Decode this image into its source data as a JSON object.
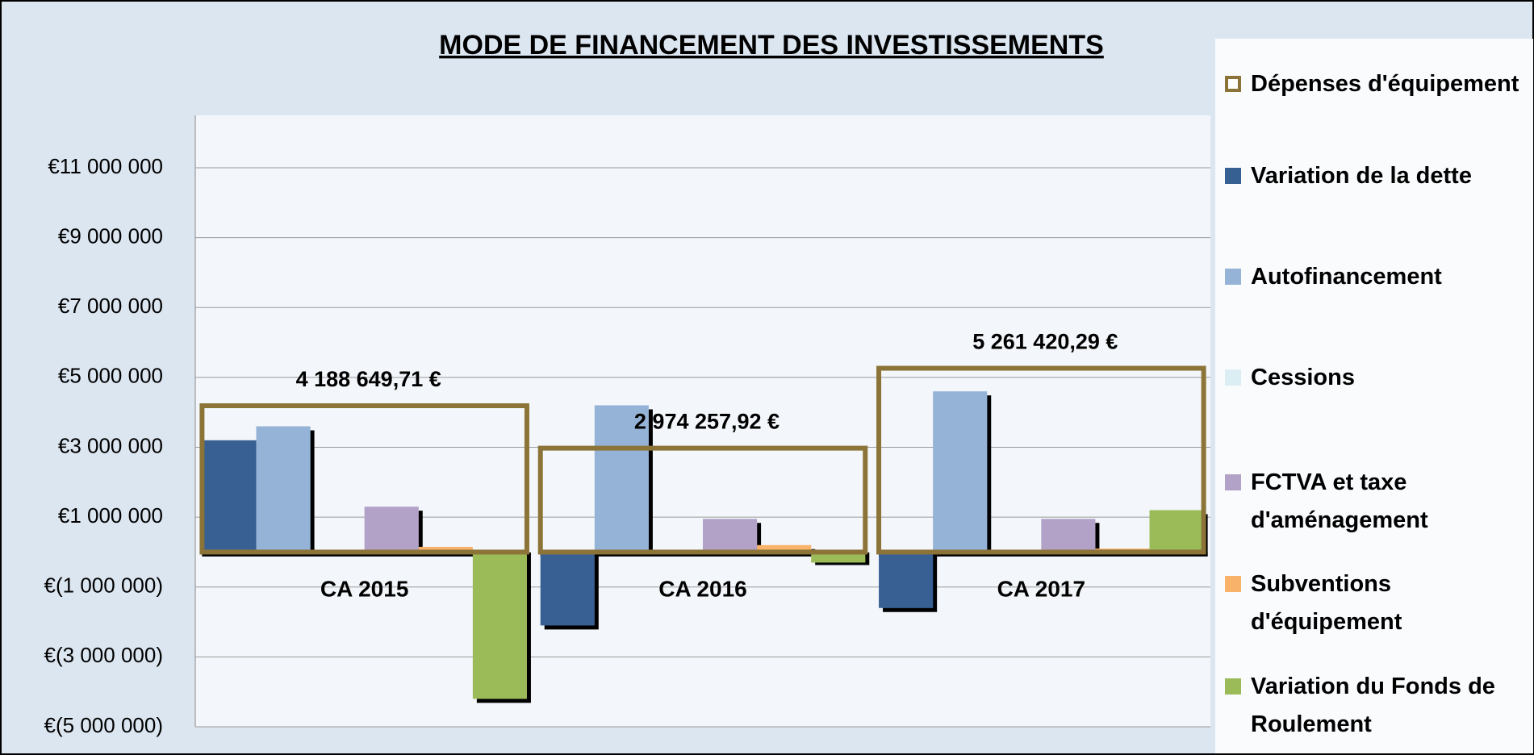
{
  "chart_data": {
    "type": "bar",
    "title": "MODE DE FINANCEMENT DES INVESTISSEMENTS",
    "categories": [
      "CA 2015",
      "CA 2016",
      "CA 2017"
    ],
    "series": [
      {
        "name": "Dépenses d'équipement",
        "color": "#8c7438",
        "style": "outline",
        "values": [
          4188649.71,
          2974257.92,
          5261420.29
        ],
        "value_labels": [
          "4 188 649,71 €",
          "2 974 257,92 €",
          "5 261 420,29 €"
        ]
      },
      {
        "name": "Variation de la dette",
        "color": "#376092",
        "values": [
          3200000,
          -2100000,
          -1600000
        ]
      },
      {
        "name": "Autofinancement",
        "color": "#95b3d7",
        "values": [
          3600000,
          4200000,
          4600000
        ]
      },
      {
        "name": "Cessions",
        "color": "#dbeef4",
        "values": [
          0,
          0,
          0
        ]
      },
      {
        "name": "FCTVA et taxe d'aménagement",
        "color": "#b3a2c7",
        "values": [
          1300000,
          950000,
          950000
        ]
      },
      {
        "name": "Subventions d'équipement",
        "color": "#f9b26a",
        "values": [
          150000,
          200000,
          100000
        ]
      },
      {
        "name": "Variation du Fonds de Roulement",
        "color": "#9bbb59",
        "values": [
          -4200000,
          -300000,
          1200000
        ]
      }
    ],
    "ylim": [
      -5000000,
      12500000
    ],
    "yticks": [
      {
        "value": -5000000,
        "label": "€(5 000 000)"
      },
      {
        "value": -3000000,
        "label": "€(3 000 000)"
      },
      {
        "value": -1000000,
        "label": "€(1 000 000)"
      },
      {
        "value": 1000000,
        "label": "€1 000 000"
      },
      {
        "value": 3000000,
        "label": "€3 000 000"
      },
      {
        "value": 5000000,
        "label": "€5 000 000"
      },
      {
        "value": 7000000,
        "label": "€7 000 000"
      },
      {
        "value": 9000000,
        "label": "€9 000 000"
      },
      {
        "value": 11000000,
        "label": "€11 000 000"
      }
    ],
    "grid": true,
    "legend": "right"
  }
}
